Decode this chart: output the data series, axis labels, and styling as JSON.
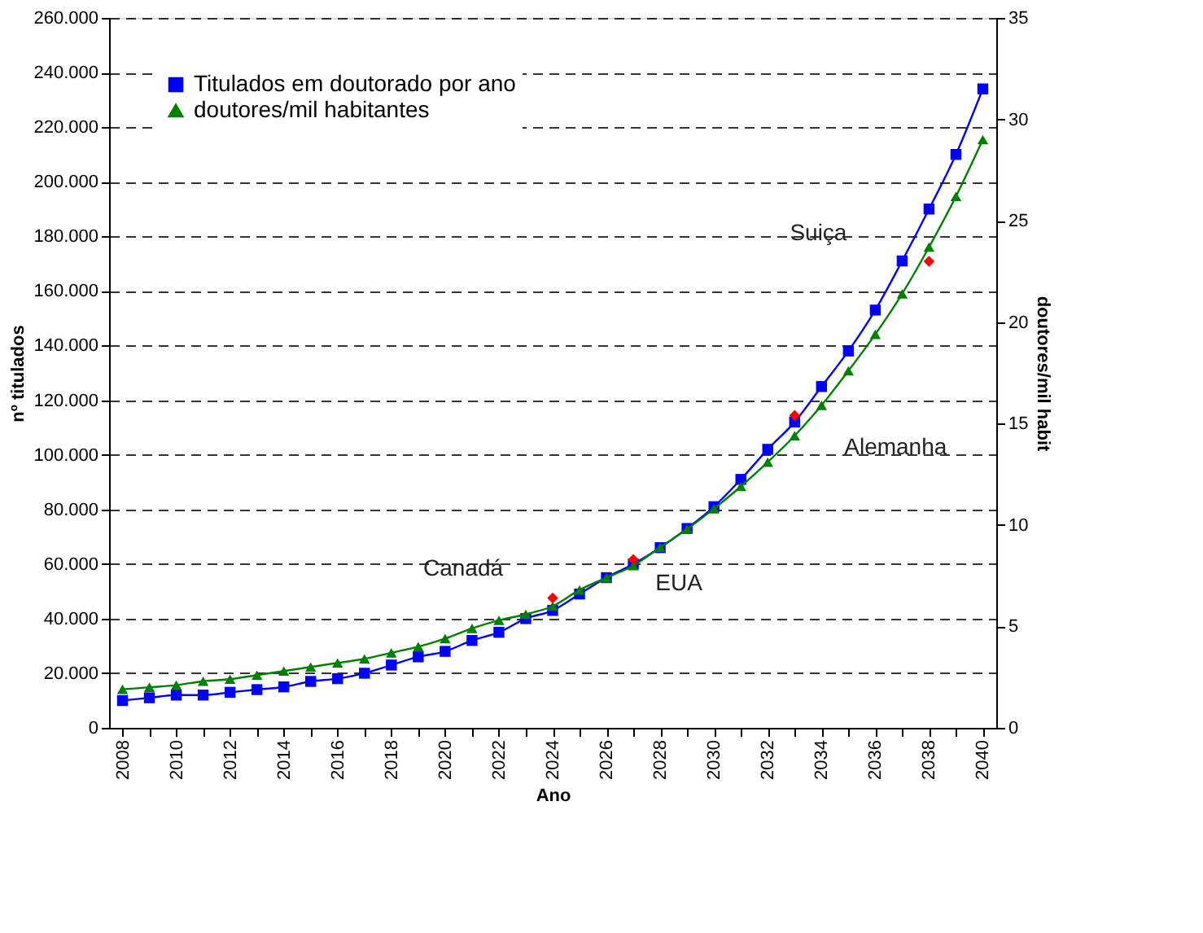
{
  "chart_data": {
    "type": "line",
    "xlabel": "Ano",
    "ylabel": "nº titulados",
    "y2label": "doutores/mil habit",
    "x": [
      2008,
      2009,
      2010,
      2011,
      2012,
      2013,
      2014,
      2015,
      2016,
      2017,
      2018,
      2019,
      2020,
      2021,
      2022,
      2023,
      2024,
      2025,
      2026,
      2027,
      2028,
      2029,
      2030,
      2031,
      2032,
      2033,
      2034,
      2035,
      2036,
      2037,
      2038,
      2039,
      2040
    ],
    "xlim": [
      2007.5,
      2040.5
    ],
    "xticks": [
      2008,
      {
        "value": 2009,
        "label": null
      },
      2010,
      {
        "value": 2011,
        "label": null
      },
      2012,
      {
        "value": 2013,
        "label": null
      },
      2014,
      {
        "value": 2015,
        "label": null
      },
      2016,
      {
        "value": 2017,
        "label": null
      },
      2018,
      {
        "value": 2019,
        "label": null
      },
      2020,
      {
        "value": 2021,
        "label": null
      },
      2022,
      {
        "value": 2023,
        "label": null
      },
      2024,
      {
        "value": 2025,
        "label": null
      },
      2026,
      {
        "value": 2027,
        "label": null
      },
      2028,
      {
        "value": 2029,
        "label": null
      },
      2030,
      {
        "value": 2031,
        "label": null
      },
      2032,
      {
        "value": 2033,
        "label": null
      },
      2034,
      {
        "value": 2035,
        "label": null
      },
      2036,
      {
        "value": 2037,
        "label": null
      },
      2038,
      {
        "value": 2039,
        "label": null
      },
      2040
    ],
    "ylim": [
      0,
      260000
    ],
    "yticks": [
      0,
      {
        "value": 20000,
        "label": "20.000"
      },
      {
        "value": 40000,
        "label": "40.000"
      },
      {
        "value": 60000,
        "label": "60.000"
      },
      {
        "value": 80000,
        "label": "80.000"
      },
      {
        "value": 100000,
        "label": "100.000"
      },
      {
        "value": 120000,
        "label": "120.000"
      },
      {
        "value": 140000,
        "label": "140.000"
      },
      {
        "value": 160000,
        "label": "160.000"
      },
      {
        "value": 180000,
        "label": "180.000"
      },
      {
        "value": 200000,
        "label": "200.000"
      },
      {
        "value": 220000,
        "label": "220.000"
      },
      {
        "value": 240000,
        "label": "240.000"
      },
      {
        "value": 260000,
        "label": "260.000"
      }
    ],
    "y2lim": [
      0,
      35
    ],
    "y2ticks": [
      0,
      5,
      10,
      15,
      20,
      25,
      30,
      35
    ],
    "grid": "y",
    "legend": "top left",
    "line_style": "solid",
    "series": [
      {
        "name": "Titulados em doutorado por ano",
        "color": "#0000ff",
        "marker": "square",
        "values": [
          10000,
          11000,
          12000,
          12000,
          13000,
          14000,
          15000,
          17000,
          18000,
          20000,
          23000,
          26000,
          28000,
          32000,
          35000,
          40000,
          43000,
          49000,
          55000,
          60000,
          66000,
          73000,
          81000,
          91000,
          102000,
          112000,
          125000,
          138000,
          153000,
          171000,
          190000,
          210000,
          234000
        ]
      },
      {
        "name": "doutores/mil habitantes",
        "color": "#008000",
        "marker": "triangle",
        "axis": "y2",
        "values": [
          1.9,
          2.0,
          2.1,
          2.3,
          2.4,
          2.6,
          2.8,
          3.0,
          3.2,
          3.4,
          3.7,
          4.0,
          4.4,
          4.9,
          5.3,
          5.6,
          6.0,
          6.8,
          7.4,
          8.0,
          8.9,
          9.8,
          10.8,
          11.9,
          13.1,
          14.4,
          15.9,
          17.6,
          19.4,
          21.4,
          23.7,
          26.2,
          29.0
        ]
      },
      {
        "type": "scatter",
        "color": "#ff0000",
        "marker": "diamond",
        "axis": "y2",
        "x": [
          2024,
          2027,
          2033,
          2038
        ],
        "values": [
          6.4,
          8.3,
          15.4,
          23.0
        ]
      }
    ],
    "annotations": [
      "Canadá",
      "EUA",
      "Alemanha",
      "Suiça"
    ]
  }
}
